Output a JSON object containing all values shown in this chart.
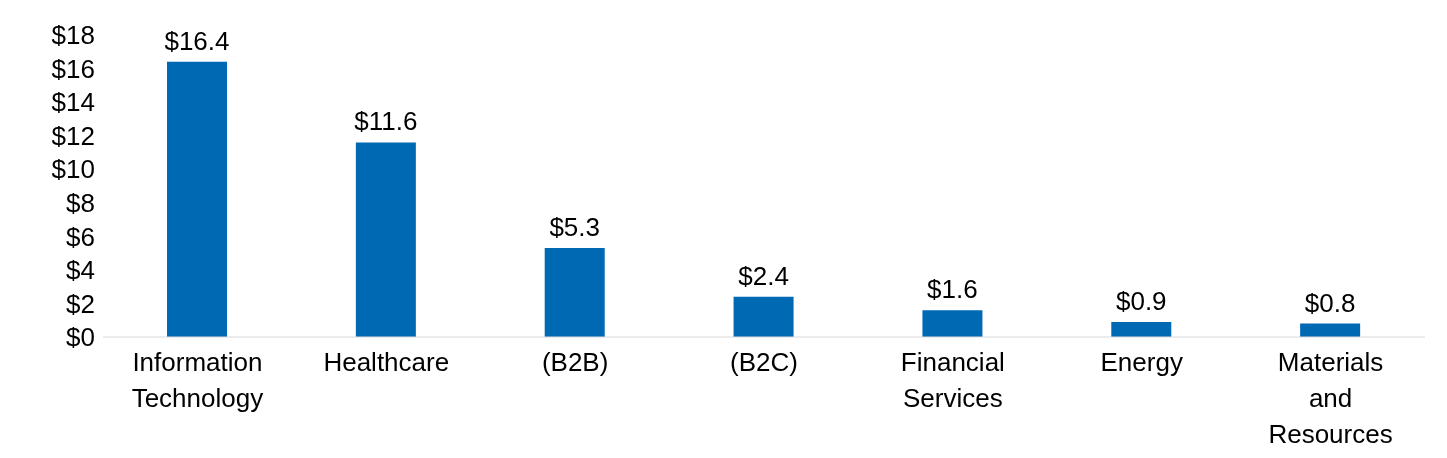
{
  "chart_data": {
    "type": "bar",
    "categories": [
      "Information Technology",
      "Healthcare",
      "(B2B)",
      "(B2C)",
      "Financial Services",
      "Energy",
      "Materials and Resources"
    ],
    "values": [
      16.4,
      11.6,
      5.3,
      2.4,
      1.6,
      0.9,
      0.8
    ],
    "color": "#0069b4",
    "ylim": [
      0,
      18
    ],
    "yticks": [
      {
        "value": 0,
        "label": "$0"
      },
      {
        "value": 2,
        "label": "$2"
      },
      {
        "value": 4,
        "label": "$4"
      },
      {
        "value": 6,
        "label": "$6"
      },
      {
        "value": 8,
        "label": "$8"
      },
      {
        "value": 10,
        "label": "$10"
      },
      {
        "value": 12,
        "label": "$12"
      },
      {
        "value": 14,
        "label": "$14"
      },
      {
        "value": 16,
        "label": "$16"
      },
      {
        "value": 18,
        "label": "$18"
      }
    ],
    "value_labels": [
      "$16.4",
      "$11.6",
      "$5.3",
      "$2.4",
      "$1.6",
      "$0.9",
      "$0.8"
    ],
    "grid": false,
    "legend": false
  }
}
